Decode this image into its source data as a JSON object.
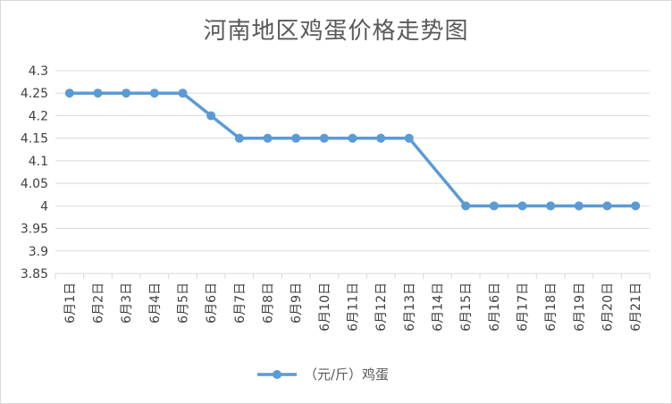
{
  "chart_data": {
    "type": "line",
    "title": "河南地区鸡蛋价格走势图",
    "categories": [
      "6月1日",
      "6月2日",
      "6月3日",
      "6月4日",
      "6月5日",
      "6月6日",
      "6月7日",
      "6月8日",
      "6月9日",
      "6月10日",
      "6月11日",
      "6月12日",
      "6月13日",
      "6月14日",
      "6月15日",
      "6月16日",
      "6月17日",
      "6月18日",
      "6月19日",
      "6月20日",
      "6月21日"
    ],
    "series": [
      {
        "name": "（元/斤）鸡蛋",
        "values": [
          4.25,
          4.25,
          4.25,
          4.25,
          4.25,
          4.2,
          4.15,
          4.15,
          4.15,
          4.15,
          4.15,
          4.15,
          4.15,
          null,
          4.0,
          4.0,
          4.0,
          4.0,
          4.0,
          4.0,
          4.0
        ]
      }
    ],
    "ylim": [
      3.85,
      4.3
    ],
    "yticks": [
      "3.85",
      "3.9",
      "3.95",
      "4",
      "4.05",
      "4.1",
      "4.15",
      "4.2",
      "4.25",
      "4.3"
    ],
    "grid": true,
    "legend": "bottom",
    "color": "#5b9bd5"
  }
}
